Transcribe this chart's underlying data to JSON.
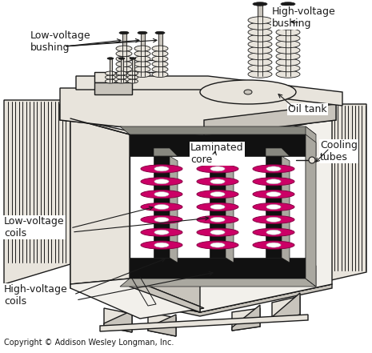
{
  "background_color": "#ffffff",
  "fig_width": 4.65,
  "fig_height": 4.41,
  "dpi": 100,
  "title_text": "",
  "copyright": "Copyright © Addison Wesley Longman, Inc.",
  "labels": {
    "low_voltage_bushing": "Low-voltage\nbushing",
    "high_voltage_bushing": "High-voltage\nbushing",
    "oil_tank": "Oil tank",
    "cooling_tubes": "Cooling\ntubes",
    "laminated_core": "Laminated\ncore",
    "low_voltage_coils": "Low-voltage\ncoils",
    "high_voltage_coils": "High-voltage\ncoils"
  },
  "colors": {
    "background": "#ffffff",
    "dark": "#1a1a1a",
    "light_gray": "#e8e4dc",
    "mid_gray": "#c8c4bc",
    "dark_gray": "#888880",
    "white": "#ffffff",
    "pink": "#cc0066",
    "cream": "#f2f0eb",
    "near_black": "#111111",
    "shadow": "#aaa8a0"
  }
}
